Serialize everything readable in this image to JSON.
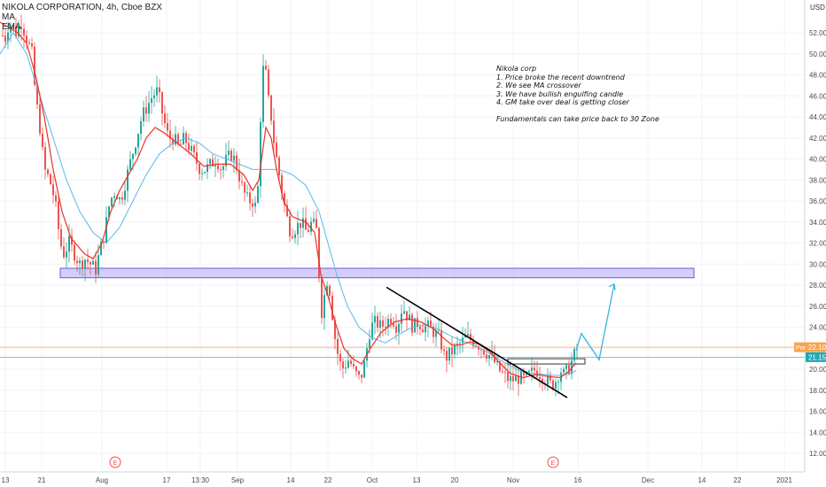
{
  "header": {
    "symbol_line": "NIKOLA CORPORATION, 4h, Cboe BZX",
    "ma_label": "MA",
    "ema_label": "EMA"
  },
  "currency_label": "USD",
  "annotation": {
    "lines": [
      "Nikola corp",
      "1. Price broke the recent downtrend",
      "2. We see MA crossover",
      "3. We have bullish engulfing candle",
      "4. GM take over deal is getting closer",
      "",
      "Fundamentals can take price back to 30 Zone"
    ]
  },
  "chart_data": {
    "type": "candlestick",
    "title": "NIKOLA CORPORATION, 4h, Cboe BZX",
    "ylabel": "USD",
    "ylim": [
      10,
      54
    ],
    "y_ticks": [
      "12.00",
      "14.00",
      "16.00",
      "18.00",
      "20.00",
      "22.00",
      "24.00",
      "26.00",
      "28.00",
      "30.00",
      "32.00",
      "34.00",
      "36.00",
      "38.00",
      "40.00",
      "42.00",
      "44.00",
      "46.00",
      "48.00",
      "50.00",
      "52.00"
    ],
    "x_ticks": [
      "13",
      "21",
      "Aug",
      "17",
      "13:30",
      "Sep",
      "14",
      "22",
      "Oct",
      "13",
      "20",
      "Nov",
      "16",
      "Dec",
      "14",
      "22",
      "2021"
    ],
    "earnings_markers": [
      "E",
      "E"
    ],
    "price_labels": [
      {
        "label": "Pre",
        "value": "22.10",
        "color": "#f7a350"
      },
      {
        "label": "",
        "value": "21.15",
        "color": "#22a6b3"
      }
    ],
    "candle_path": [
      [
        0,
        52
      ],
      [
        6,
        51.5
      ],
      [
        10,
        53
      ],
      [
        18,
        52
      ],
      [
        24,
        53
      ],
      [
        32,
        51
      ],
      [
        36,
        50
      ],
      [
        40,
        46
      ],
      [
        45,
        43
      ],
      [
        50,
        39
      ],
      [
        56,
        38
      ],
      [
        62,
        36
      ],
      [
        68,
        32
      ],
      [
        72,
        31
      ],
      [
        78,
        32
      ],
      [
        84,
        31
      ],
      [
        90,
        30
      ],
      [
        96,
        30.5
      ],
      [
        102,
        30
      ],
      [
        108,
        29.5
      ],
      [
        112,
        31
      ],
      [
        118,
        33
      ],
      [
        124,
        36
      ],
      [
        130,
        37
      ],
      [
        136,
        36
      ],
      [
        142,
        38
      ],
      [
        148,
        40
      ],
      [
        154,
        42
      ],
      [
        160,
        44
      ],
      [
        166,
        45
      ],
      [
        172,
        46
      ],
      [
        178,
        46.5
      ],
      [
        184,
        44
      ],
      [
        190,
        42
      ],
      [
        196,
        42
      ],
      [
        202,
        41
      ],
      [
        208,
        42
      ],
      [
        214,
        41
      ],
      [
        220,
        40
      ],
      [
        226,
        39
      ],
      [
        232,
        39
      ],
      [
        238,
        39.5
      ],
      [
        244,
        40
      ],
      [
        250,
        39
      ],
      [
        256,
        40
      ],
      [
        262,
        40.5
      ],
      [
        268,
        39
      ],
      [
        274,
        37
      ],
      [
        280,
        36
      ],
      [
        286,
        36
      ],
      [
        290,
        35
      ],
      [
        294,
        44
      ],
      [
        298,
        50
      ],
      [
        302,
        46
      ],
      [
        306,
        44
      ],
      [
        310,
        41
      ],
      [
        316,
        38
      ],
      [
        322,
        35
      ],
      [
        328,
        33
      ],
      [
        334,
        33.5
      ],
      [
        340,
        34
      ],
      [
        346,
        33
      ],
      [
        352,
        34
      ],
      [
        358,
        33
      ],
      [
        362,
        25
      ],
      [
        366,
        27
      ],
      [
        370,
        29
      ],
      [
        374,
        26
      ],
      [
        378,
        23
      ],
      [
        382,
        21
      ],
      [
        386,
        20
      ],
      [
        390,
        20.5
      ],
      [
        394,
        21
      ],
      [
        398,
        20
      ],
      [
        402,
        19.5
      ],
      [
        406,
        19
      ],
      [
        410,
        20
      ],
      [
        414,
        22
      ],
      [
        418,
        24
      ],
      [
        424,
        24.5
      ],
      [
        430,
        24
      ],
      [
        436,
        24.5
      ],
      [
        442,
        25
      ],
      [
        448,
        24
      ],
      [
        454,
        26
      ],
      [
        460,
        25
      ],
      [
        466,
        24
      ],
      [
        472,
        24.5
      ],
      [
        478,
        24
      ],
      [
        484,
        24
      ],
      [
        490,
        23.5
      ],
      [
        496,
        23
      ],
      [
        502,
        21
      ],
      [
        508,
        21.5
      ],
      [
        514,
        22
      ],
      [
        520,
        22.5
      ],
      [
        526,
        23
      ],
      [
        532,
        22.8
      ],
      [
        538,
        22.5
      ],
      [
        544,
        22
      ],
      [
        550,
        21.5
      ],
      [
        556,
        21
      ],
      [
        562,
        20
      ],
      [
        568,
        19.5
      ],
      [
        574,
        19
      ],
      [
        580,
        19
      ],
      [
        586,
        19.2
      ],
      [
        592,
        19
      ],
      [
        598,
        19.5
      ],
      [
        604,
        20
      ],
      [
        610,
        19.5
      ],
      [
        616,
        19
      ],
      [
        622,
        18.5
      ],
      [
        628,
        19
      ],
      [
        632,
        20
      ],
      [
        636,
        19.5
      ],
      [
        640,
        19.8
      ],
      [
        644,
        20.5
      ],
      [
        648,
        21.3
      ],
      [
        652,
        22.1
      ]
    ],
    "red_ma": [
      [
        0,
        53
      ],
      [
        20,
        52
      ],
      [
        30,
        51
      ],
      [
        40,
        48
      ],
      [
        50,
        44
      ],
      [
        60,
        39
      ],
      [
        70,
        35
      ],
      [
        80,
        32.5
      ],
      [
        95,
        31
      ],
      [
        105,
        30.5
      ],
      [
        115,
        32
      ],
      [
        125,
        35
      ],
      [
        135,
        37
      ],
      [
        145,
        38.5
      ],
      [
        155,
        40
      ],
      [
        165,
        42
      ],
      [
        175,
        43
      ],
      [
        185,
        42.5
      ],
      [
        200,
        41.5
      ],
      [
        215,
        40.5
      ],
      [
        230,
        39.3
      ],
      [
        245,
        39.5
      ],
      [
        260,
        39.5
      ],
      [
        275,
        38.5
      ],
      [
        285,
        37
      ],
      [
        292,
        38
      ],
      [
        300,
        43
      ],
      [
        306,
        42
      ],
      [
        312,
        39
      ],
      [
        320,
        36
      ],
      [
        330,
        34.5
      ],
      [
        345,
        34
      ],
      [
        355,
        33
      ],
      [
        362,
        29
      ],
      [
        370,
        27
      ],
      [
        378,
        24.5
      ],
      [
        388,
        22
      ],
      [
        398,
        21
      ],
      [
        408,
        20.5
      ],
      [
        418,
        22
      ],
      [
        430,
        23.5
      ],
      [
        445,
        24.5
      ],
      [
        460,
        24.8
      ],
      [
        475,
        24.5
      ],
      [
        490,
        23.8
      ],
      [
        500,
        23
      ],
      [
        510,
        22.3
      ],
      [
        520,
        22.3
      ],
      [
        530,
        22.6
      ],
      [
        540,
        22.4
      ],
      [
        552,
        21.7
      ],
      [
        564,
        20.6
      ],
      [
        576,
        19.6
      ],
      [
        590,
        19.2
      ],
      [
        605,
        19.5
      ],
      [
        620,
        19.3
      ],
      [
        632,
        19.2
      ],
      [
        642,
        19.8
      ],
      [
        650,
        20.6
      ]
    ],
    "blue_ma": [
      [
        0,
        50
      ],
      [
        15,
        52
      ],
      [
        30,
        50
      ],
      [
        45,
        46
      ],
      [
        60,
        42
      ],
      [
        75,
        38
      ],
      [
        90,
        35
      ],
      [
        105,
        33
      ],
      [
        120,
        32
      ],
      [
        135,
        33.5
      ],
      [
        150,
        36
      ],
      [
        165,
        38.5
      ],
      [
        180,
        40.5
      ],
      [
        195,
        41.5
      ],
      [
        210,
        42
      ],
      [
        225,
        41.5
      ],
      [
        240,
        40.5
      ],
      [
        255,
        40
      ],
      [
        270,
        39.5
      ],
      [
        285,
        39
      ],
      [
        300,
        39
      ],
      [
        315,
        39
      ],
      [
        330,
        38.5
      ],
      [
        345,
        37.5
      ],
      [
        360,
        35
      ],
      [
        370,
        32
      ],
      [
        380,
        29
      ],
      [
        392,
        26
      ],
      [
        405,
        24
      ],
      [
        420,
        23
      ],
      [
        435,
        22.5
      ],
      [
        450,
        23.3
      ],
      [
        465,
        24
      ],
      [
        480,
        24.2
      ],
      [
        495,
        23.8
      ],
      [
        510,
        23.1
      ],
      [
        525,
        22.6
      ],
      [
        540,
        22.1
      ],
      [
        555,
        21.4
      ],
      [
        570,
        20.6
      ],
      [
        585,
        19.9
      ],
      [
        600,
        19.6
      ],
      [
        615,
        19.5
      ],
      [
        630,
        19.4
      ],
      [
        645,
        19.6
      ],
      [
        650,
        19.9
      ]
    ],
    "levels": [
      {
        "name": "current-price",
        "value": 22.1,
        "color": "#f7a350"
      },
      {
        "name": "ma-value",
        "value": 21.15,
        "color": "#22a6b3"
      }
    ],
    "zones": [
      {
        "name": "resistance-zone-30",
        "y_low": 28.7,
        "y_high": 29.6,
        "color": "#b3a6f5"
      },
      {
        "name": "breakout-box",
        "y_low": 20.5,
        "y_high": 21.0,
        "color": "#ffffff"
      }
    ],
    "trendline": [
      [
        436,
        27.8
      ],
      [
        640,
        17.3
      ]
    ],
    "projection": [
      [
        650,
        21.8
      ],
      [
        656,
        23.4
      ],
      [
        676,
        20.9
      ],
      [
        693,
        28.1
      ]
    ]
  }
}
